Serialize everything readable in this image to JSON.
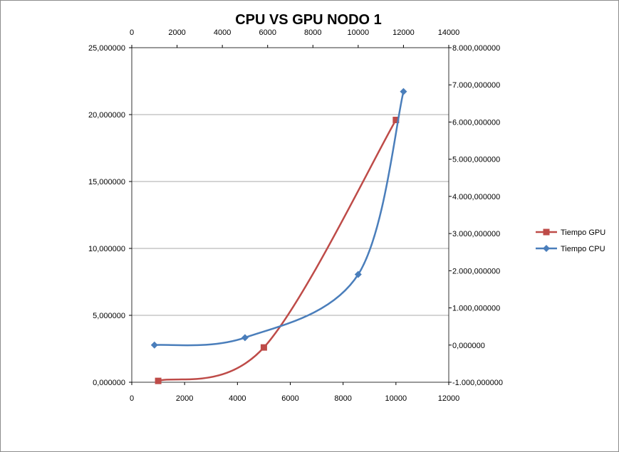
{
  "chart_data": {
    "type": "line",
    "title": "CPU VS GPU  NODO 1",
    "legend_position": "right",
    "grid": true,
    "axes": {
      "x_bottom": {
        "range": [
          0,
          12000
        ],
        "ticks": [
          "0",
          "2000",
          "4000",
          "6000",
          "8000",
          "10000",
          "12000"
        ]
      },
      "x_top": {
        "range": [
          0,
          14000
        ],
        "ticks": [
          "0",
          "2000",
          "4000",
          "6000",
          "8000",
          "10000",
          "12000",
          "14000"
        ]
      },
      "y_left": {
        "range": [
          0,
          25
        ],
        "ticks": [
          "0,000000",
          "5,000000",
          "10,000000",
          "15,000000",
          "20,000000",
          "25,000000"
        ]
      },
      "y_right": {
        "range": [
          -1000,
          8000
        ],
        "ticks": [
          "-1.000,000000",
          "0,000000",
          "1.000,000000",
          "2.000,000000",
          "3.000,000000",
          "4.000,000000",
          "5.000,000000",
          "6.000,000000",
          "7.000,000000",
          "8.000,000000"
        ]
      }
    },
    "series": [
      {
        "name": "Tiempo GPU",
        "color": "#be4b48",
        "marker": "square",
        "x_axis": "bottom",
        "y_axis": "left",
        "x": [
          1000,
          5000,
          10000
        ],
        "y": [
          0.1,
          2.6,
          19.6
        ]
      },
      {
        "name": "Tiempo CPU",
        "color": "#4a7ebb",
        "marker": "diamond",
        "x_axis": "top",
        "y_axis": "right",
        "x": [
          1000,
          5000,
          10000,
          12000
        ],
        "y": [
          0,
          200,
          1900,
          6820
        ]
      }
    ]
  }
}
